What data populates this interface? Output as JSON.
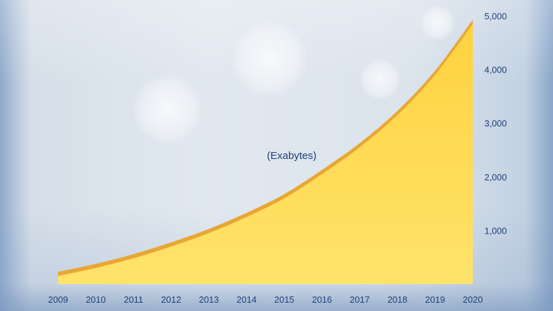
{
  "chart_data": {
    "type": "area",
    "x": [
      2009,
      2010,
      2011,
      2012,
      2013,
      2014,
      2015,
      2016,
      2017,
      2018,
      2019,
      2020
    ],
    "x_tick_labels": [
      "2009",
      "2010",
      "2011",
      "2012",
      "2013",
      "2014",
      "2015",
      "2016",
      "2017",
      "2018",
      "2019",
      "2020"
    ],
    "values": [
      150,
      300,
      480,
      700,
      950,
      1250,
      1600,
      2050,
      2550,
      3150,
      3900,
      4850
    ],
    "y_ticks": [
      1000,
      2000,
      3000,
      4000,
      5000
    ],
    "y_tick_labels": [
      "1,000",
      "2,000",
      "3,000",
      "4,000",
      "5,000"
    ],
    "ylim": [
      0,
      5000
    ],
    "xlim": [
      2009,
      2020
    ],
    "y_axis_side": "right",
    "annotation": "(Exabytes)",
    "grid": false,
    "colors": {
      "fill_top": "#ffd64a",
      "fill_bottom": "#ffe066",
      "edge": "#eaa833",
      "text": "#1f3f77"
    }
  }
}
